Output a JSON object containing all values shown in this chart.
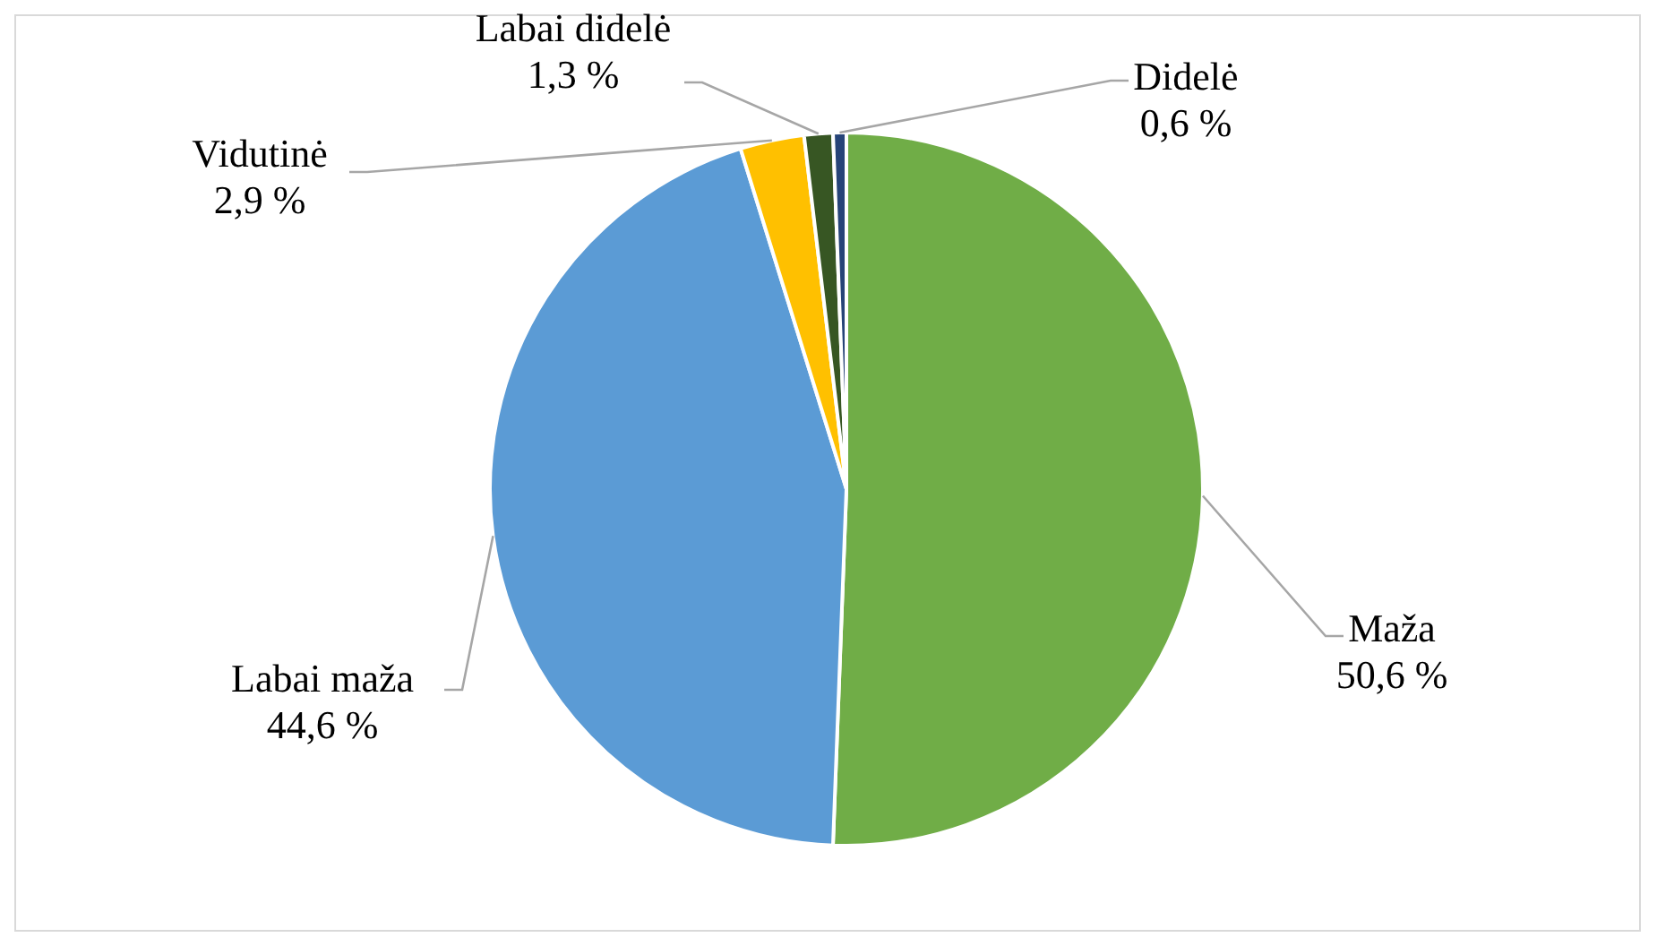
{
  "chart_data": {
    "type": "pie",
    "categories": [
      "Maža",
      "Labai maža",
      "Vidutinė",
      "Labai didelė",
      "Didelė"
    ],
    "values": [
      50.6,
      44.6,
      2.9,
      1.3,
      0.6
    ],
    "value_labels": [
      "50,6 %",
      "44,6 %",
      "2,9 %",
      "1,3 %",
      "0,6 %"
    ],
    "colors": [
      "#70ad47",
      "#5b9bd5",
      "#ffc000",
      "#375623",
      "#264478"
    ],
    "legend": false
  }
}
